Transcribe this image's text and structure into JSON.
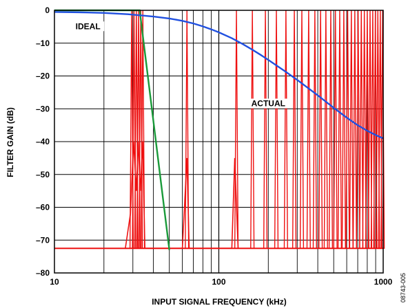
{
  "chart_data": {
    "type": "line",
    "title": "",
    "xlabel": "INPUT SIGNAL FREQUENCY (kHz)",
    "ylabel": "FILTER GAIN (dB)",
    "xscale": "log",
    "xlim": [
      10,
      1000
    ],
    "ylim": [
      -80,
      0
    ],
    "grid": true,
    "xticks": [
      {
        "value": 10,
        "label": "10"
      },
      {
        "value": 100,
        "label": "100"
      },
      {
        "value": 1000,
        "label": "1000"
      }
    ],
    "yticks": [
      {
        "value": 0,
        "label": "0"
      },
      {
        "value": -10,
        "label": "–10"
      },
      {
        "value": -20,
        "label": "–20"
      },
      {
        "value": -30,
        "label": "–30"
      },
      {
        "value": -40,
        "label": "–40"
      },
      {
        "value": -50,
        "label": "–50"
      },
      {
        "value": -60,
        "label": "–60"
      },
      {
        "value": -70,
        "label": "–70"
      },
      {
        "value": -80,
        "label": "–80"
      }
    ],
    "annotations": [
      {
        "text": "IDEAL",
        "x": 16,
        "y": -5.5
      },
      {
        "text": "ACTUAL",
        "x": 200,
        "y": -29
      }
    ],
    "figure_id": "08743-005",
    "series": [
      {
        "color": "#2050e0",
        "x": [
          10,
          14,
          20,
          28,
          40,
          50,
          60,
          70,
          80,
          90,
          100,
          120,
          140,
          160,
          180,
          200,
          250,
          300,
          400,
          500,
          600,
          700,
          800,
          900,
          1000
        ],
        "y": [
          -0.5,
          -0.6,
          -0.8,
          -1.2,
          -1.9,
          -2.5,
          -3.2,
          -4.0,
          -4.9,
          -5.8,
          -6.7,
          -8.5,
          -10.3,
          -12.0,
          -13.6,
          -15.1,
          -18.4,
          -21.2,
          -25.9,
          -29.7,
          -32.7,
          -35.0,
          -36.7,
          -38.0,
          -39.0
        ]
      },
      {
        "color": "#1a9a3a",
        "x": [
          10,
          33,
          50
        ],
        "y": [
          0,
          0,
          -73
        ]
      },
      {
        "color": "#ee1111",
        "baseline": -72.5,
        "x": [
          27,
          29,
          30.3,
          31.5,
          32.3,
          33.3,
          34.4,
          35.5,
          60,
          64,
          66,
          120,
          125,
          131
        ],
        "y": [
          -72.5,
          -62,
          -40,
          -55,
          -40,
          -55,
          -40,
          -72.5,
          -72.5,
          -45,
          -72.5,
          -72.5,
          -45,
          -72.5
        ],
        "spike_freqs": [
          29.5,
          30.5,
          31.5,
          32.5,
          33.5,
          34.5,
          64,
          128,
          160,
          192,
          224,
          256,
          288,
          320,
          352,
          384,
          416,
          448,
          480,
          512,
          544,
          576,
          608,
          640,
          672,
          704,
          736,
          768,
          800,
          832,
          864,
          896,
          928,
          960,
          992
        ],
        "spike_peak": 0
      }
    ]
  }
}
